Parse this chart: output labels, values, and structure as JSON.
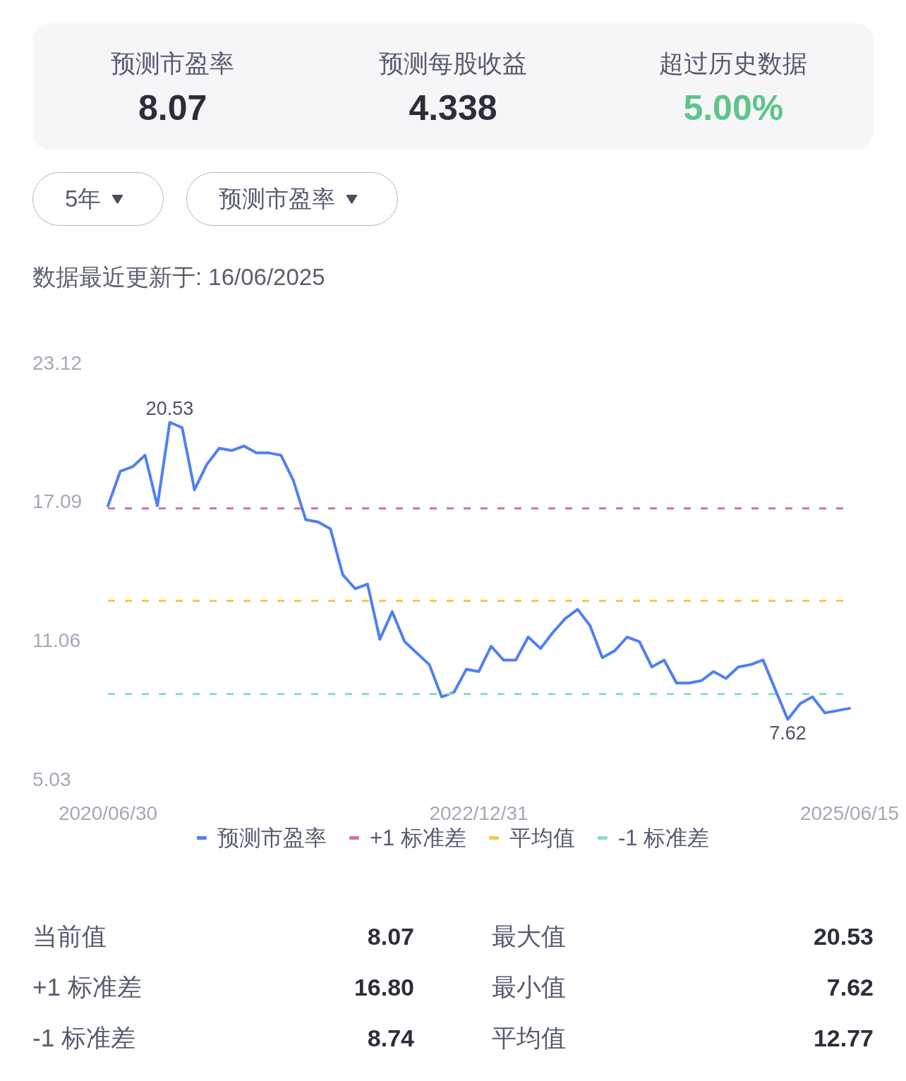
{
  "chart_data": [
    {
      "type": "other",
      "annotations": [
        "预测市盈率",
        "8.07",
        "预测每股收益",
        "4.338",
        "超过历史数据",
        "5.00%"
      ]
    },
    {
      "type": "line",
      "subtitle": "数据最近更新于: 16/06/2025",
      "annotations": [
        "5年",
        "预测市盈率"
      ],
      "categories": [
        "2020/06/30",
        null,
        null,
        null,
        null,
        null,
        null,
        null,
        null,
        null,
        null,
        null,
        null,
        null,
        null,
        null,
        null,
        null,
        null,
        null,
        null,
        null,
        null,
        null,
        null,
        null,
        null,
        null,
        null,
        null,
        "2022/12/31",
        null,
        null,
        null,
        null,
        null,
        null,
        null,
        null,
        null,
        null,
        null,
        null,
        null,
        null,
        null,
        null,
        null,
        null,
        null,
        null,
        null,
        null,
        null,
        null,
        null,
        null,
        null,
        null,
        null,
        "2025/06/15"
      ],
      "series": [
        {
          "name": "预测市盈率",
          "color": "#5080f2",
          "values": [
            16.9,
            18.4,
            18.6,
            19.1,
            16.9,
            20.53,
            20.3,
            17.6,
            18.7,
            19.4,
            19.3,
            19.5,
            19.2,
            19.2,
            19.1,
            18.0,
            16.3,
            16.2,
            15.9,
            13.9,
            13.3,
            13.5,
            11.1,
            12.3,
            11.0,
            10.5,
            10.0,
            8.6,
            8.8,
            9.8,
            9.7,
            10.8,
            10.2,
            10.2,
            11.2,
            10.7,
            11.4,
            12.0,
            12.4,
            11.7,
            10.3,
            10.6,
            11.2,
            11.0,
            9.9,
            10.2,
            9.2,
            9.2,
            9.3,
            9.7,
            9.4,
            9.9,
            10.0,
            10.2,
            8.9,
            7.62,
            8.3,
            8.6,
            7.9,
            8.0,
            8.1
          ],
          "value_labels": [
            null,
            null,
            null,
            null,
            null,
            "20.53",
            null,
            null,
            null,
            null,
            null,
            null,
            null,
            null,
            null,
            null,
            null,
            null,
            null,
            null,
            null,
            null,
            null,
            null,
            null,
            null,
            null,
            null,
            null,
            null,
            null,
            null,
            null,
            null,
            null,
            null,
            null,
            null,
            null,
            null,
            null,
            null,
            null,
            null,
            null,
            null,
            null,
            null,
            null,
            null,
            null,
            null,
            null,
            null,
            null,
            "7.62",
            null,
            null,
            null,
            null,
            null
          ]
        }
      ],
      "ref_lines": [
        {
          "axis": "y",
          "value": 16.8,
          "label": "+1 标准差",
          "color": "#d870b2",
          "line_style": "dashed"
        },
        {
          "axis": "y",
          "value": 12.77,
          "label": "平均值",
          "color": "#f3cb45",
          "line_style": "dashed"
        },
        {
          "axis": "y",
          "value": 8.74,
          "label": "-1 标准差",
          "color": "#8edbd6",
          "line_style": "dashed"
        }
      ],
      "ylim": [
        5.03,
        23.12
      ],
      "yticks": [
        5.03,
        11.06,
        17.09,
        23.12
      ],
      "legend": "bottom",
      "marker": "none"
    },
    {
      "type": "other",
      "annotations": [
        "当前值",
        "8.07",
        "最大值",
        "20.53",
        "+1 标准差",
        "16.80",
        "最小值",
        "7.62",
        "-1 标准差",
        "8.74",
        "平均值",
        "12.77"
      ]
    }
  ]
}
